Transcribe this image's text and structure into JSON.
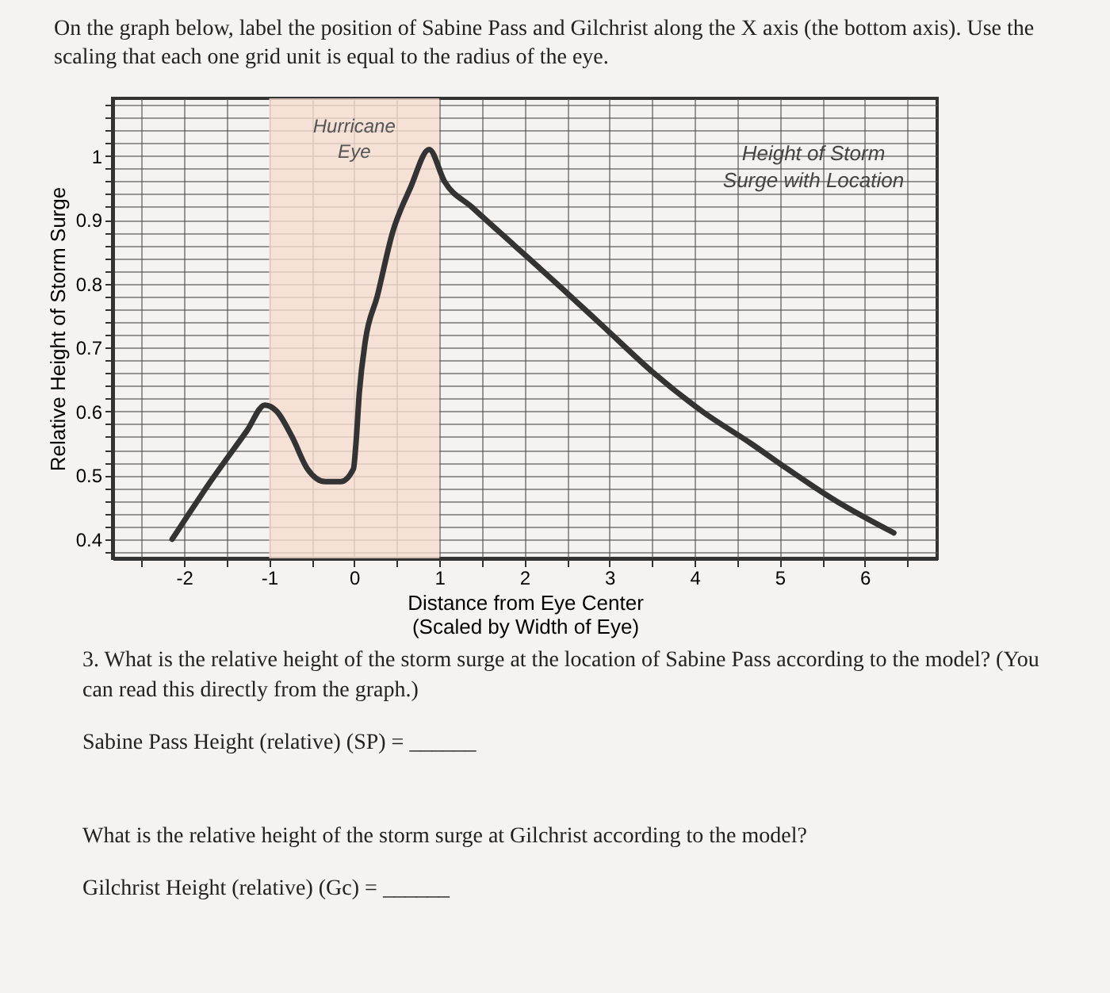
{
  "chart_data": {
    "type": "line",
    "title": "On the graph below, label the position of Sabine Pass and Gilchrist along the X axis (the bottom axis). Use the scaling that each one grid unit is equal to the radius of the eye.",
    "xlabel": "Distance from Eye Center (Scaled by Width of Eye)",
    "ylabel": "Relative Height of Storm Surge",
    "annotations": [
      "Height of Storm Surge with Location",
      "3. What is the relative height of the storm surge at the location of Sabine Pass according to the model? (You can read this directly from the graph.)",
      "Sabine Pass Height (relative) (SP) = ______",
      "What is the relative height of the storm surge at Gilchrist according to the model?",
      "Gilchrist Height (relative) (Gc) = ______"
    ],
    "x": [
      -2.14,
      -1.69,
      -1.26,
      -1.05,
      -0.91,
      -0.73,
      -0.55,
      -0.34,
      -0.16,
      -0.01,
      0.02,
      0.06,
      0.13,
      0.27,
      0.45,
      0.66,
      0.88,
      1.06,
      1.38,
      1.88,
      2.38,
      2.95,
      3.52,
      4.09,
      4.66,
      5.09,
      5.66,
      6.34
    ],
    "series": [
      {
        "color": "#333333",
        "values": [
          0.4,
          0.49,
          0.57,
          0.61,
          0.6,
          0.56,
          0.51,
          0.49,
          0.49,
          0.51,
          0.55,
          0.63,
          0.71,
          0.78,
          0.88,
          0.95,
          1.01,
          0.96,
          0.92,
          0.86,
          0.8,
          0.73,
          0.66,
          0.6,
          0.55,
          0.51,
          0.46,
          0.41
        ]
      }
    ],
    "xlim": [
      -2.84,
      6.85
    ],
    "ylim": [
      0.37,
      1.09
    ],
    "xticks": [
      {
        "value": -2.5,
        "label": null
      },
      -2,
      {
        "value": -1.5,
        "label": null
      },
      -1,
      {
        "value": -0.5,
        "label": null
      },
      0,
      {
        "value": 0.5,
        "label": null
      },
      1,
      {
        "value": 1.5,
        "label": null
      },
      2,
      {
        "value": 2.5,
        "label": null
      },
      3,
      {
        "value": 3.5,
        "label": null
      },
      4,
      {
        "value": 4.5,
        "label": null
      },
      5,
      {
        "value": 5.5,
        "label": null
      },
      6,
      {
        "value": 6.5,
        "label": null
      }
    ],
    "yticks": [
      {
        "value": 0.38,
        "label": null
      },
      0.4,
      {
        "value": 0.42,
        "label": null
      },
      {
        "value": 0.44,
        "label": null
      },
      {
        "value": 0.46,
        "label": null
      },
      {
        "value": 0.48,
        "label": null
      },
      0.5,
      {
        "value": 0.52,
        "label": null
      },
      {
        "value": 0.54,
        "label": null
      },
      {
        "value": 0.56,
        "label": null
      },
      {
        "value": 0.58,
        "label": null
      },
      0.6,
      {
        "value": 0.62,
        "label": null
      },
      {
        "value": 0.64,
        "label": null
      },
      {
        "value": 0.66,
        "label": null
      },
      {
        "value": 0.68,
        "label": null
      },
      0.7,
      {
        "value": 0.72,
        "label": null
      },
      {
        "value": 0.74,
        "label": null
      },
      {
        "value": 0.76,
        "label": null
      },
      {
        "value": 0.78,
        "label": null
      },
      0.8,
      {
        "value": 0.82,
        "label": null
      },
      {
        "value": 0.84,
        "label": null
      },
      {
        "value": 0.86,
        "label": null
      },
      {
        "value": 0.88,
        "label": null
      },
      0.9,
      {
        "value": 0.92,
        "label": null
      },
      {
        "value": 0.94,
        "label": null
      },
      {
        "value": 0.96,
        "label": null
      },
      {
        "value": 0.98,
        "label": null
      },
      1,
      {
        "value": 1.02,
        "label": null
      },
      {
        "value": 1.04,
        "label": null
      },
      {
        "value": 1.06,
        "label": null
      },
      {
        "value": 1.08,
        "label": null
      }
    ],
    "grid": true,
    "bands": [
      {
        "axis": "x",
        "from": -1,
        "to": 1,
        "label": "Hurricane Eye",
        "color": "#f5dccf"
      }
    ]
  }
}
